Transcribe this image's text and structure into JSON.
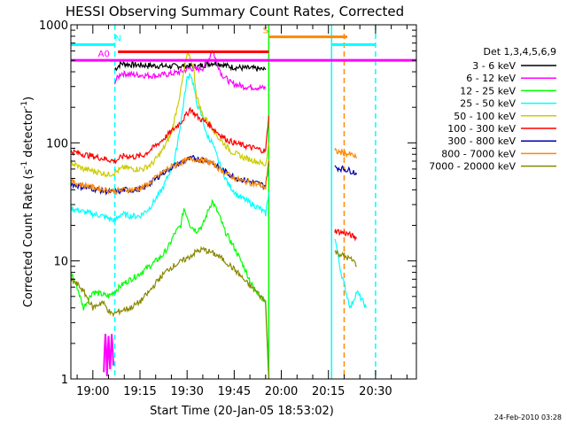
{
  "chart_data": {
    "type": "line",
    "title": "HESSI Observing Summary Count Rates, Corrected",
    "xlabel": "Start Time (20-Jan-05 18:53:02)",
    "ylabel": "Corrected Count Rate (s",
    "ylabel_sup": "-1",
    "ylabel_tail": "detector",
    "ylabel_close": ")",
    "yscale": "log",
    "ylim": [
      1,
      1000
    ],
    "xlim_minutes": [
      -7,
      103
    ],
    "x_ticks": [
      {
        "label": "19:00",
        "minute": 0
      },
      {
        "label": "19:15",
        "minute": 15
      },
      {
        "label": "19:30",
        "minute": 30
      },
      {
        "label": "19:45",
        "minute": 45
      },
      {
        "label": "20:00",
        "minute": 60
      },
      {
        "label": "20:15",
        "minute": 75
      },
      {
        "label": "20:30",
        "minute": 90
      }
    ],
    "y_ticks": [
      {
        "label": "1",
        "value": 1
      },
      {
        "label": "10",
        "value": 10
      },
      {
        "label": "100",
        "value": 100
      },
      {
        "label": "1000",
        "value": 1000
      }
    ],
    "legend_title": "Det 1,3,4,5,6,9",
    "series": [
      {
        "name": "3 - 6 keV",
        "color": "#000000",
        "points": [
          [
            7,
            420
          ],
          [
            9,
            470
          ],
          [
            12,
            460
          ],
          [
            15,
            455
          ],
          [
            20,
            450
          ],
          [
            25,
            445
          ],
          [
            30,
            450
          ],
          [
            33,
            440
          ],
          [
            36,
            460
          ],
          [
            38,
            475
          ],
          [
            40,
            470
          ],
          [
            44,
            440
          ],
          [
            48,
            430
          ],
          [
            52,
            425
          ],
          [
            55,
            415
          ]
        ]
      },
      {
        "name": "6 - 12 keV",
        "color": "#ff00ff",
        "points": [
          [
            7,
            330
          ],
          [
            9,
            390
          ],
          [
            12,
            380
          ],
          [
            15,
            375
          ],
          [
            20,
            370
          ],
          [
            25,
            385
          ],
          [
            28,
            400
          ],
          [
            31,
            430
          ],
          [
            33,
            420
          ],
          [
            35,
            430
          ],
          [
            37,
            520
          ],
          [
            38,
            620
          ],
          [
            39,
            520
          ],
          [
            41,
            380
          ],
          [
            44,
            320
          ],
          [
            48,
            300
          ],
          [
            52,
            295
          ],
          [
            55,
            290
          ]
        ]
      },
      {
        "name": "12 - 25 keV",
        "color": "#00ff00",
        "points": [
          [
            -7,
            8
          ],
          [
            -5,
            6
          ],
          [
            -3,
            4
          ],
          [
            0,
            5.5
          ],
          [
            5,
            5
          ],
          [
            10,
            6.5
          ],
          [
            14,
            7.5
          ],
          [
            18,
            9
          ],
          [
            22,
            11
          ],
          [
            24,
            13
          ],
          [
            26,
            17
          ],
          [
            28,
            20
          ],
          [
            29,
            28
          ],
          [
            30,
            24
          ],
          [
            31,
            20
          ],
          [
            33,
            18
          ],
          [
            35,
            20
          ],
          [
            37,
            28
          ],
          [
            38,
            32
          ],
          [
            40,
            25
          ],
          [
            42,
            18
          ],
          [
            45,
            13
          ],
          [
            48,
            9
          ],
          [
            51,
            6
          ],
          [
            55,
            4.5
          ],
          [
            56,
            1
          ]
        ]
      },
      {
        "name": "25 - 50 keV",
        "color": "#00ffff",
        "points": [
          [
            -7,
            28
          ],
          [
            -3,
            26
          ],
          [
            0,
            25
          ],
          [
            3,
            24
          ],
          [
            7,
            22
          ],
          [
            9,
            25
          ],
          [
            12,
            24
          ],
          [
            15,
            24
          ],
          [
            18,
            28
          ],
          [
            22,
            40
          ],
          [
            26,
            70
          ],
          [
            28,
            150
          ],
          [
            30,
            350
          ],
          [
            31,
            390
          ],
          [
            32,
            310
          ],
          [
            33,
            220
          ],
          [
            35,
            160
          ],
          [
            36,
            120
          ],
          [
            38,
            100
          ],
          [
            40,
            70
          ],
          [
            43,
            45
          ],
          [
            46,
            36
          ],
          [
            50,
            31
          ],
          [
            53,
            28
          ],
          [
            55,
            25
          ],
          [
            56,
            38
          ],
          [
            77,
            16
          ],
          [
            79,
            8
          ],
          [
            81,
            5
          ],
          [
            82,
            4
          ],
          [
            84,
            5.5
          ],
          [
            86,
            4.5
          ],
          [
            87,
            4
          ]
        ]
      },
      {
        "name": "50 - 100 keV",
        "color": "#cccc00",
        "points": [
          [
            -7,
            68
          ],
          [
            -3,
            60
          ],
          [
            0,
            58
          ],
          [
            5,
            54
          ],
          [
            7,
            56
          ],
          [
            10,
            62
          ],
          [
            13,
            60
          ],
          [
            16,
            60
          ],
          [
            19,
            67
          ],
          [
            22,
            85
          ],
          [
            25,
            120
          ],
          [
            28,
            280
          ],
          [
            29,
            400
          ],
          [
            30,
            560
          ],
          [
            31,
            520
          ],
          [
            32,
            450
          ],
          [
            33,
            250
          ],
          [
            35,
            170
          ],
          [
            37,
            150
          ],
          [
            40,
            110
          ],
          [
            44,
            85
          ],
          [
            48,
            75
          ],
          [
            52,
            70
          ],
          [
            55,
            65
          ],
          [
            56,
            100
          ]
        ]
      },
      {
        "name": "100 - 300 keV",
        "color": "#ff0000",
        "points": [
          [
            -7,
            85
          ],
          [
            -3,
            80
          ],
          [
            0,
            77
          ],
          [
            4,
            73
          ],
          [
            7,
            70
          ],
          [
            10,
            78
          ],
          [
            13,
            76
          ],
          [
            16,
            78
          ],
          [
            19,
            90
          ],
          [
            22,
            105
          ],
          [
            25,
            125
          ],
          [
            28,
            150
          ],
          [
            30,
            175
          ],
          [
            31,
            195
          ],
          [
            32,
            180
          ],
          [
            34,
            160
          ],
          [
            36,
            150
          ],
          [
            38,
            135
          ],
          [
            40,
            120
          ],
          [
            43,
            105
          ],
          [
            46,
            98
          ],
          [
            50,
            92
          ],
          [
            53,
            88
          ],
          [
            55,
            85
          ],
          [
            56,
            170
          ],
          [
            77,
            18
          ],
          [
            79,
            17.5
          ],
          [
            81,
            17
          ],
          [
            83,
            16
          ],
          [
            84,
            15.5
          ]
        ]
      },
      {
        "name": "300 - 800 keV",
        "color": "#0000aa",
        "points": [
          [
            -7,
            45
          ],
          [
            -3,
            42
          ],
          [
            0,
            41
          ],
          [
            4,
            39
          ],
          [
            7,
            38
          ],
          [
            10,
            40
          ],
          [
            13,
            40
          ],
          [
            16,
            41
          ],
          [
            19,
            47
          ],
          [
            22,
            55
          ],
          [
            25,
            62
          ],
          [
            28,
            68
          ],
          [
            30,
            72
          ],
          [
            32,
            74
          ],
          [
            34,
            73
          ],
          [
            36,
            71
          ],
          [
            38,
            68
          ],
          [
            40,
            62
          ],
          [
            43,
            55
          ],
          [
            46,
            50
          ],
          [
            50,
            47
          ],
          [
            53,
            45
          ],
          [
            55,
            43
          ],
          [
            56,
            70
          ],
          [
            77,
            62
          ],
          [
            80,
            60
          ],
          [
            83,
            57
          ],
          [
            84,
            54
          ]
        ]
      },
      {
        "name": "800 - 7000 keV",
        "color": "#ff8800",
        "points": [
          [
            -7,
            47
          ],
          [
            -3,
            44
          ],
          [
            0,
            42
          ],
          [
            4,
            40
          ],
          [
            7,
            39
          ],
          [
            10,
            40
          ],
          [
            13,
            40
          ],
          [
            16,
            42
          ],
          [
            19,
            48
          ],
          [
            22,
            56
          ],
          [
            25,
            63
          ],
          [
            28,
            68
          ],
          [
            30,
            71
          ],
          [
            32,
            73
          ],
          [
            34,
            72
          ],
          [
            36,
            70
          ],
          [
            38,
            67
          ],
          [
            40,
            61
          ],
          [
            43,
            54
          ],
          [
            46,
            49
          ],
          [
            50,
            46
          ],
          [
            53,
            44
          ],
          [
            55,
            42
          ],
          [
            56,
            72
          ],
          [
            77,
            85
          ],
          [
            80,
            82
          ],
          [
            83,
            78
          ],
          [
            84,
            74
          ]
        ]
      },
      {
        "name": "7000 - 20000 keV",
        "color": "#888800",
        "points": [
          [
            -7,
            7
          ],
          [
            -4,
            6
          ],
          [
            -2,
            5
          ],
          [
            0,
            4
          ],
          [
            3,
            4.5
          ],
          [
            6,
            3.5
          ],
          [
            9,
            3.8
          ],
          [
            12,
            4
          ],
          [
            15,
            4.5
          ],
          [
            18,
            5.5
          ],
          [
            21,
            7
          ],
          [
            24,
            8.5
          ],
          [
            27,
            9.5
          ],
          [
            30,
            10.5
          ],
          [
            33,
            12
          ],
          [
            35,
            12.5
          ],
          [
            37,
            12
          ],
          [
            40,
            11
          ],
          [
            43,
            9.5
          ],
          [
            46,
            8
          ],
          [
            49,
            6.5
          ],
          [
            52,
            5.5
          ],
          [
            55,
            4.5
          ],
          [
            56,
            1
          ],
          [
            77,
            12
          ],
          [
            80,
            11
          ],
          [
            83,
            10
          ],
          [
            84,
            9
          ]
        ]
      }
    ],
    "spikes": [
      {
        "color": "#ff00ff",
        "points": [
          [
            3.5,
            1.2
          ],
          [
            4,
            2.5
          ],
          [
            4.5,
            1.1
          ],
          [
            5,
            2.3
          ],
          [
            5.5,
            1.2
          ],
          [
            6,
            2.5
          ],
          [
            6.5,
            1.3
          ]
        ]
      }
    ],
    "indicators": [
      {
        "label": "A0",
        "color": "#ff00ff",
        "x0": -7,
        "x1": 103,
        "value": 500,
        "label_minute": 3.5
      },
      {
        "label": "",
        "color": "#ff0000",
        "x0": 8,
        "x1": 56,
        "value": 590
      },
      {
        "label": "N",
        "color": "#00ffff",
        "x0": -7,
        "x1": 7,
        "value": 680,
        "label_minute": 8
      },
      {
        "label": "",
        "color": "#00ffff",
        "x0": 76,
        "x1": 90,
        "value": 680
      },
      {
        "label": "S",
        "color": "#ff8800",
        "x0": 56,
        "x1": 81,
        "value": 790,
        "label_minute": 55
      }
    ],
    "vlines": [
      {
        "minute": 7,
        "color": "#00ffff",
        "dashed": true
      },
      {
        "minute": 56,
        "color": "#00ff00",
        "dashed": false
      },
      {
        "minute": 76,
        "color": "#00ffff",
        "dashed": false
      },
      {
        "minute": 80,
        "color": "#ff8800",
        "dashed": true
      },
      {
        "minute": 90,
        "color": "#00ffff",
        "dashed": true
      }
    ]
  },
  "footer_date": "24-Feb-2010 03:28"
}
